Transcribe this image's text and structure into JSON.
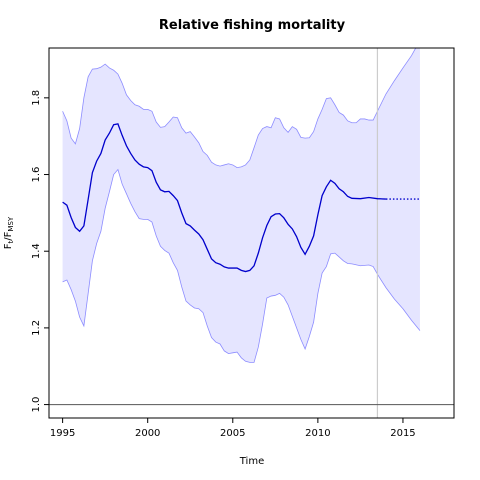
{
  "chart_data": {
    "type": "line",
    "title": "Relative fishing mortality",
    "xlabel": "Time",
    "ylabel": {
      "main": "F",
      "sub1": "t",
      "sep": "/F",
      "sub2": "MSY"
    },
    "xlim": [
      1994.2,
      2018.0
    ],
    "ylim": [
      0.965,
      1.93
    ],
    "x_ticks": [
      1995,
      2000,
      2005,
      2010,
      2015
    ],
    "y_ticks": [
      1.0,
      1.2,
      1.4,
      1.6,
      1.8
    ],
    "y_tick_labels": [
      "1.0",
      "1.2",
      "1.4",
      "1.6",
      "1.8"
    ],
    "reference_line": 1.0,
    "forecast_start": 2013.5,
    "colors": {
      "line": "#0000cc",
      "band_fill": "#e5e5ff",
      "band_stroke": "#8c8cff",
      "reference": "#555555",
      "divider": "#cccccc"
    },
    "series": [
      {
        "values": [
          [
            1995.0,
            1.528
          ],
          [
            1995.25,
            1.52
          ],
          [
            1995.5,
            1.488
          ],
          [
            1995.75,
            1.462
          ],
          [
            1996.0,
            1.452
          ],
          [
            1996.25,
            1.466
          ],
          [
            1996.5,
            1.535
          ],
          [
            1996.75,
            1.605
          ],
          [
            1997.0,
            1.635
          ],
          [
            1997.25,
            1.655
          ],
          [
            1997.5,
            1.69
          ],
          [
            1997.75,
            1.708
          ],
          [
            1998.0,
            1.73
          ],
          [
            1998.25,
            1.732
          ],
          [
            1998.5,
            1.702
          ],
          [
            1998.75,
            1.675
          ],
          [
            1999.0,
            1.655
          ],
          [
            1999.25,
            1.638
          ],
          [
            1999.5,
            1.627
          ],
          [
            1999.75,
            1.62
          ],
          [
            2000.0,
            1.618
          ],
          [
            2000.25,
            1.61
          ],
          [
            2000.5,
            1.58
          ],
          [
            2000.75,
            1.56
          ],
          [
            2001.0,
            1.555
          ],
          [
            2001.25,
            1.556
          ],
          [
            2001.5,
            1.545
          ],
          [
            2001.75,
            1.532
          ],
          [
            2002.0,
            1.5
          ],
          [
            2002.25,
            1.472
          ],
          [
            2002.5,
            1.466
          ],
          [
            2002.75,
            1.455
          ],
          [
            2003.0,
            1.445
          ],
          [
            2003.25,
            1.43
          ],
          [
            2003.5,
            1.405
          ],
          [
            2003.75,
            1.38
          ],
          [
            2004.0,
            1.37
          ],
          [
            2004.25,
            1.366
          ],
          [
            2004.5,
            1.359
          ],
          [
            2004.75,
            1.356
          ],
          [
            2005.0,
            1.356
          ],
          [
            2005.25,
            1.356
          ],
          [
            2005.5,
            1.35
          ],
          [
            2005.75,
            1.347
          ],
          [
            2006.0,
            1.35
          ],
          [
            2006.25,
            1.362
          ],
          [
            2006.5,
            1.395
          ],
          [
            2006.75,
            1.435
          ],
          [
            2007.0,
            1.467
          ],
          [
            2007.25,
            1.49
          ],
          [
            2007.5,
            1.497
          ],
          [
            2007.75,
            1.498
          ],
          [
            2008.0,
            1.487
          ],
          [
            2008.25,
            1.47
          ],
          [
            2008.5,
            1.458
          ],
          [
            2008.75,
            1.438
          ],
          [
            2009.0,
            1.41
          ],
          [
            2009.25,
            1.392
          ],
          [
            2009.5,
            1.413
          ],
          [
            2009.75,
            1.44
          ],
          [
            2010.0,
            1.495
          ],
          [
            2010.25,
            1.545
          ],
          [
            2010.5,
            1.568
          ],
          [
            2010.75,
            1.585
          ],
          [
            2011.0,
            1.577
          ],
          [
            2011.25,
            1.563
          ],
          [
            2011.5,
            1.555
          ],
          [
            2011.75,
            1.543
          ],
          [
            2012.0,
            1.538
          ],
          [
            2012.5,
            1.537
          ],
          [
            2013.0,
            1.54
          ],
          [
            2013.5,
            1.537
          ],
          [
            2014.0,
            1.536
          ]
        ]
      },
      {
        "style": "dotted",
        "values": [
          [
            2014.0,
            1.536
          ],
          [
            2016.0,
            1.536
          ]
        ]
      }
    ],
    "band": {
      "upper": [
        [
          1995.0,
          1.765
        ],
        [
          1995.25,
          1.74
        ],
        [
          1995.5,
          1.695
        ],
        [
          1995.75,
          1.68
        ],
        [
          1996.0,
          1.72
        ],
        [
          1996.25,
          1.8
        ],
        [
          1996.5,
          1.855
        ],
        [
          1996.75,
          1.875
        ],
        [
          1997.0,
          1.876
        ],
        [
          1997.25,
          1.88
        ],
        [
          1997.5,
          1.888
        ],
        [
          1997.75,
          1.878
        ],
        [
          1998.0,
          1.872
        ],
        [
          1998.25,
          1.862
        ],
        [
          1998.5,
          1.838
        ],
        [
          1998.75,
          1.808
        ],
        [
          1999.0,
          1.793
        ],
        [
          1999.25,
          1.782
        ],
        [
          1999.5,
          1.778
        ],
        [
          1999.75,
          1.77
        ],
        [
          2000.0,
          1.77
        ],
        [
          2000.25,
          1.765
        ],
        [
          2000.5,
          1.737
        ],
        [
          2000.75,
          1.723
        ],
        [
          2001.0,
          1.725
        ],
        [
          2001.25,
          1.737
        ],
        [
          2001.5,
          1.75
        ],
        [
          2001.75,
          1.748
        ],
        [
          2002.0,
          1.722
        ],
        [
          2002.25,
          1.708
        ],
        [
          2002.5,
          1.712
        ],
        [
          2002.75,
          1.698
        ],
        [
          2003.0,
          1.683
        ],
        [
          2003.25,
          1.66
        ],
        [
          2003.5,
          1.65
        ],
        [
          2003.75,
          1.632
        ],
        [
          2004.0,
          1.625
        ],
        [
          2004.25,
          1.622
        ],
        [
          2004.5,
          1.625
        ],
        [
          2004.75,
          1.628
        ],
        [
          2005.0,
          1.625
        ],
        [
          2005.25,
          1.618
        ],
        [
          2005.5,
          1.62
        ],
        [
          2005.75,
          1.625
        ],
        [
          2006.0,
          1.638
        ],
        [
          2006.25,
          1.67
        ],
        [
          2006.5,
          1.703
        ],
        [
          2006.75,
          1.72
        ],
        [
          2007.0,
          1.725
        ],
        [
          2007.25,
          1.722
        ],
        [
          2007.5,
          1.748
        ],
        [
          2007.75,
          1.745
        ],
        [
          2008.0,
          1.722
        ],
        [
          2008.25,
          1.71
        ],
        [
          2008.5,
          1.725
        ],
        [
          2008.75,
          1.718
        ],
        [
          2009.0,
          1.697
        ],
        [
          2009.25,
          1.695
        ],
        [
          2009.5,
          1.696
        ],
        [
          2009.75,
          1.712
        ],
        [
          2010.0,
          1.745
        ],
        [
          2010.25,
          1.77
        ],
        [
          2010.5,
          1.798
        ],
        [
          2010.75,
          1.8
        ],
        [
          2011.0,
          1.782
        ],
        [
          2011.25,
          1.762
        ],
        [
          2011.5,
          1.755
        ],
        [
          2011.75,
          1.74
        ],
        [
          2012.0,
          1.735
        ],
        [
          2012.25,
          1.735
        ],
        [
          2012.5,
          1.745
        ],
        [
          2012.75,
          1.745
        ],
        [
          2013.0,
          1.742
        ],
        [
          2013.25,
          1.742
        ],
        [
          2013.5,
          1.765
        ],
        [
          2014.0,
          1.81
        ],
        [
          2014.5,
          1.845
        ],
        [
          2015.0,
          1.878
        ],
        [
          2015.5,
          1.91
        ],
        [
          2016.0,
          1.95
        ]
      ],
      "lower": [
        [
          1995.0,
          1.32
        ],
        [
          1995.25,
          1.325
        ],
        [
          1995.5,
          1.3
        ],
        [
          1995.75,
          1.27
        ],
        [
          1996.0,
          1.228
        ],
        [
          1996.25,
          1.205
        ],
        [
          1996.5,
          1.29
        ],
        [
          1996.75,
          1.375
        ],
        [
          1997.0,
          1.42
        ],
        [
          1997.25,
          1.452
        ],
        [
          1997.5,
          1.512
        ],
        [
          1997.75,
          1.555
        ],
        [
          1998.0,
          1.6
        ],
        [
          1998.25,
          1.613
        ],
        [
          1998.5,
          1.575
        ],
        [
          1998.75,
          1.55
        ],
        [
          1999.0,
          1.525
        ],
        [
          1999.25,
          1.503
        ],
        [
          1999.5,
          1.485
        ],
        [
          1999.75,
          1.483
        ],
        [
          2000.0,
          1.483
        ],
        [
          2000.25,
          1.476
        ],
        [
          2000.5,
          1.44
        ],
        [
          2000.75,
          1.413
        ],
        [
          2001.0,
          1.402
        ],
        [
          2001.25,
          1.395
        ],
        [
          2001.5,
          1.37
        ],
        [
          2001.75,
          1.35
        ],
        [
          2002.0,
          1.307
        ],
        [
          2002.25,
          1.27
        ],
        [
          2002.5,
          1.26
        ],
        [
          2002.75,
          1.252
        ],
        [
          2003.0,
          1.25
        ],
        [
          2003.25,
          1.24
        ],
        [
          2003.5,
          1.205
        ],
        [
          2003.75,
          1.175
        ],
        [
          2004.0,
          1.163
        ],
        [
          2004.25,
          1.158
        ],
        [
          2004.5,
          1.14
        ],
        [
          2004.75,
          1.133
        ],
        [
          2005.0,
          1.135
        ],
        [
          2005.25,
          1.137
        ],
        [
          2005.5,
          1.122
        ],
        [
          2005.75,
          1.113
        ],
        [
          2006.0,
          1.11
        ],
        [
          2006.25,
          1.11
        ],
        [
          2006.5,
          1.15
        ],
        [
          2006.75,
          1.21
        ],
        [
          2007.0,
          1.278
        ],
        [
          2007.25,
          1.283
        ],
        [
          2007.5,
          1.285
        ],
        [
          2007.75,
          1.29
        ],
        [
          2008.0,
          1.28
        ],
        [
          2008.25,
          1.26
        ],
        [
          2008.5,
          1.23
        ],
        [
          2008.75,
          1.2
        ],
        [
          2009.0,
          1.17
        ],
        [
          2009.25,
          1.145
        ],
        [
          2009.5,
          1.178
        ],
        [
          2009.75,
          1.215
        ],
        [
          2010.0,
          1.29
        ],
        [
          2010.25,
          1.343
        ],
        [
          2010.5,
          1.36
        ],
        [
          2010.75,
          1.393
        ],
        [
          2011.0,
          1.395
        ],
        [
          2011.25,
          1.385
        ],
        [
          2011.5,
          1.375
        ],
        [
          2011.75,
          1.368
        ],
        [
          2012.0,
          1.367
        ],
        [
          2012.5,
          1.362
        ],
        [
          2013.0,
          1.364
        ],
        [
          2013.25,
          1.36
        ],
        [
          2013.5,
          1.34
        ],
        [
          2014.0,
          1.305
        ],
        [
          2014.5,
          1.275
        ],
        [
          2015.0,
          1.25
        ],
        [
          2015.5,
          1.22
        ],
        [
          2016.0,
          1.193
        ]
      ]
    }
  }
}
